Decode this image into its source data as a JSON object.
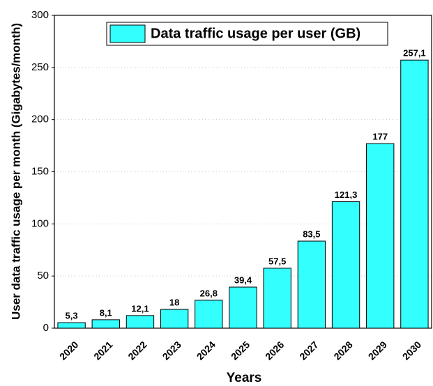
{
  "chart_data": {
    "type": "bar",
    "xlabel": "Years",
    "ylabel": "User data traffic usage per month (Gigabytes/month)",
    "categories": [
      "2020",
      "2021",
      "2022",
      "2023",
      "2024",
      "2025",
      "2026",
      "2027",
      "2028",
      "2029",
      "2030"
    ],
    "series": [
      {
        "name": "Data traffic usage per user (GB)",
        "color": "#33ffff",
        "values": [
          5.3,
          8.1,
          12.1,
          18,
          26.8,
          39.4,
          57.5,
          83.5,
          121.3,
          177,
          257.1
        ],
        "value_labels": [
          "5,3",
          "8,1",
          "12,1",
          "18",
          "26,8",
          "39,4",
          "57,5",
          "83,5",
          "121,3",
          "177",
          "257,1"
        ]
      }
    ],
    "ylim": [
      0,
      300
    ],
    "yticks": [
      0,
      50,
      100,
      150,
      200,
      250,
      300
    ],
    "grid": true,
    "legend": "top"
  }
}
